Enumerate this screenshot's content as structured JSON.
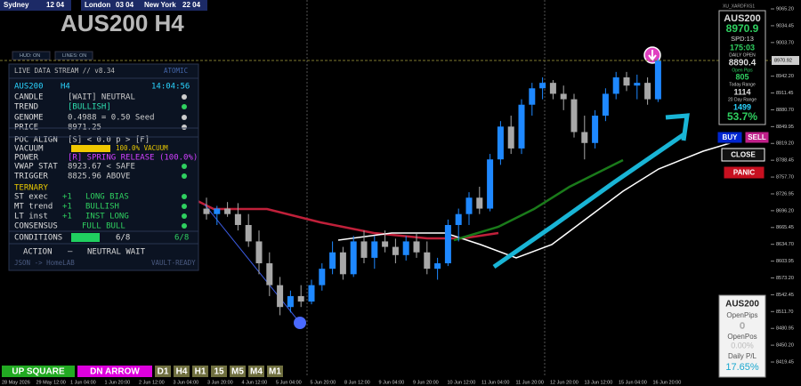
{
  "session_clock": [
    {
      "city": "Sydney",
      "time": "12 04"
    },
    {
      "city": "London",
      "time": "03 04"
    },
    {
      "city": "New York",
      "time": "22 04"
    }
  ],
  "symbol_title": "AUS200 H4",
  "toggles": [
    "HUD: ON",
    "LINES: ON"
  ],
  "hud": {
    "header": "LIVE DATA STREAM // v8.34",
    "badge": "ATOMIC",
    "symbol": "AUS200",
    "timeframe": "H4",
    "clock": "14:04:56",
    "rows": [
      {
        "label": "CANDLE",
        "value": "[WAIT] NEUTRAL"
      },
      {
        "label": "TREND",
        "value": "[BULLISH]"
      },
      {
        "label": "GENOME",
        "value": "0.4988 = 0.50 Seed"
      },
      {
        "label": "PRICE",
        "value": "8971.25"
      },
      {
        "label": "POC ALIGN",
        "value": "[S] < 0.0 p > [F]"
      },
      {
        "label": "VACUUM",
        "value": "100.0% VACUUM"
      },
      {
        "label": "POWER",
        "value": "[R] SPRING RELEASE (100.0%)"
      },
      {
        "label": "VWAP STAT",
        "value": "8923.67 < SAFE"
      },
      {
        "label": "TRIGGER",
        "value": "8825.96   ABOVE"
      }
    ],
    "ternary_title": "TERNARY",
    "ternary": [
      {
        "label": "ST exec",
        "score": "+1",
        "text": "LONG BIAS"
      },
      {
        "label": "MT trend",
        "score": "+1",
        "text": "BULLISH"
      },
      {
        "label": "LT inst",
        "score": "+1",
        "text": "INST LONG"
      }
    ],
    "consensus": {
      "label": "CONSENSUS",
      "value": "FULL BULL"
    },
    "conditions": {
      "label": "CONDITIONS",
      "bar_value": "6/8",
      "count": "6/8"
    },
    "action": {
      "label": "ACTION",
      "dash": "—",
      "value": "NEUTRAL WAIT"
    },
    "footer": "JSON -> HomeLAB",
    "footer_badge": "VAULT-READY"
  },
  "right_panel": {
    "corner_label": "XU_XARDFXS1",
    "lines": [
      "AUS200",
      "8970.9",
      "SPD:13",
      "175:03",
      "DAILY OPEN",
      "8890.4",
      "Open Pips",
      "805",
      "Today Range",
      "1114",
      "20 Day Range",
      "1499",
      "53.7%"
    ]
  },
  "trade_buttons": [
    "BUY",
    "SELL",
    "CLOSE",
    "PANIC"
  ],
  "summary": {
    "lines": [
      "AUS200",
      "OpenPips",
      "0",
      "OpenPos",
      "0.00%",
      "Daily P/L",
      "17.65%"
    ]
  },
  "timeframe_bar": [
    "UP SQUARE",
    "DN ARROW",
    "D1",
    "H4",
    "H1",
    "15",
    "M5",
    "M4",
    "M1"
  ],
  "price_chart": {
    "type": "candlestick",
    "ylim": [
      8401.6,
      9081.5
    ],
    "yticks": [
      {
        "value": 9065.2,
        "label": "9065.20"
      },
      {
        "value": 9034.45,
        "label": "9034.45"
      },
      {
        "value": 9003.7,
        "label": "9003.70"
      },
      {
        "value": 8942.2,
        "label": "8942.20"
      },
      {
        "value": 8911.45,
        "label": "8911.45"
      },
      {
        "value": 8880.7,
        "label": "8880.70"
      },
      {
        "value": 8849.95,
        "label": "8849.95"
      },
      {
        "value": 8819.2,
        "label": "8819.20"
      },
      {
        "value": 8788.45,
        "label": "8788.45"
      },
      {
        "value": 8757.7,
        "label": "8757.70"
      },
      {
        "value": 8726.95,
        "label": "8726.95"
      },
      {
        "value": 8696.2,
        "label": "8696.20"
      },
      {
        "value": 8665.45,
        "label": "8665.45"
      },
      {
        "value": 8634.7,
        "label": "8634.70"
      },
      {
        "value": 8603.95,
        "label": "8603.95"
      },
      {
        "value": 8573.2,
        "label": "8573.20"
      },
      {
        "value": 8542.45,
        "label": "8542.45"
      },
      {
        "value": 8511.7,
        "label": "8511.70"
      },
      {
        "value": 8480.95,
        "label": "8480.95"
      },
      {
        "value": 8450.2,
        "label": "8450.20"
      },
      {
        "value": 8419.45,
        "label": "8419.45"
      }
    ],
    "current_price": {
      "value": 8970.92,
      "label": "8970.92"
    },
    "x_labels": [
      "28 May 2026",
      "29 May 12:00",
      "1 Jun 04:00",
      "1 Jun 20:00",
      "2 Jun 12:00",
      "3 Jun 04:00",
      "3 Jun 20:00",
      "4 Jun 12:00",
      "5 Jun 04:00",
      "5 Jun 20:00",
      "8 Jun 12:00",
      "9 Jun 04:00",
      "9 Jun 20:00",
      "10 Jun 12:00",
      "11 Jun 04:00",
      "11 Jun 20:00",
      "12 Jun 20:00",
      "13 Jun 12:00",
      "15 Jun 04:00",
      "16 Jun 20:00"
    ],
    "ohlc": [
      [
        8700,
        8720,
        8680,
        8690
      ],
      [
        8690,
        8705,
        8670,
        8700
      ],
      [
        8700,
        8712,
        8685,
        8690
      ],
      [
        8690,
        8710,
        8660,
        8670
      ],
      [
        8670,
        8690,
        8630,
        8640
      ],
      [
        8640,
        8660,
        8580,
        8600
      ],
      [
        8600,
        8620,
        8540,
        8560
      ],
      [
        8560,
        8575,
        8505,
        8520
      ],
      [
        8520,
        8550,
        8510,
        8540
      ],
      [
        8540,
        8560,
        8520,
        8530
      ],
      [
        8530,
        8570,
        8525,
        8560
      ],
      [
        8560,
        8600,
        8550,
        8590
      ],
      [
        8590,
        8640,
        8580,
        8620
      ],
      [
        8620,
        8630,
        8570,
        8580
      ],
      [
        8580,
        8650,
        8575,
        8640
      ],
      [
        8640,
        8660,
        8600,
        8610
      ],
      [
        8610,
        8650,
        8590,
        8640
      ],
      [
        8640,
        8660,
        8620,
        8630
      ],
      [
        8630,
        8645,
        8600,
        8615
      ],
      [
        8615,
        8650,
        8605,
        8640
      ],
      [
        8640,
        8655,
        8610,
        8620
      ],
      [
        8620,
        8640,
        8580,
        8590
      ],
      [
        8590,
        8610,
        8570,
        8600
      ],
      [
        8600,
        8680,
        8595,
        8670
      ],
      [
        8670,
        8700,
        8640,
        8690
      ],
      [
        8690,
        8730,
        8670,
        8720
      ],
      [
        8720,
        8740,
        8690,
        8700
      ],
      [
        8700,
        8800,
        8695,
        8790
      ],
      [
        8790,
        8860,
        8780,
        8850
      ],
      [
        8850,
        8870,
        8800,
        8810
      ],
      [
        8810,
        8900,
        8800,
        8890
      ],
      [
        8890,
        8930,
        8870,
        8920
      ],
      [
        8920,
        8940,
        8900,
        8930
      ],
      [
        8930,
        8935,
        8900,
        8910
      ],
      [
        8910,
        8925,
        8880,
        8900
      ],
      [
        8900,
        8910,
        8830,
        8840
      ],
      [
        8840,
        8870,
        8790,
        8820
      ],
      [
        8820,
        8880,
        8810,
        8870
      ],
      [
        8870,
        8920,
        8860,
        8910
      ],
      [
        8910,
        8950,
        8900,
        8940
      ],
      [
        8940,
        8950,
        8915,
        8925
      ],
      [
        8925,
        8945,
        8900,
        8930
      ],
      [
        8930,
        8940,
        8890,
        8900
      ],
      [
        8900,
        8975,
        8895,
        8970.92
      ]
    ]
  }
}
